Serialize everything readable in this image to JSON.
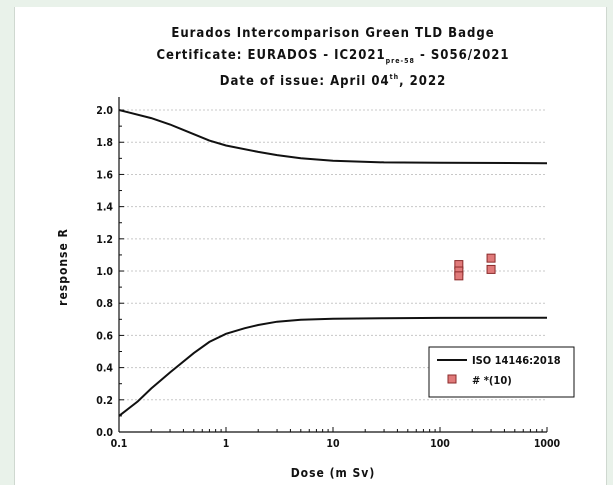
{
  "chart_data": {
    "type": "line",
    "title_lines": [
      "Eurados Intercomparison Green TLD Badge",
      "Certificate: EURADOS - IC2021",
      "Date of issue: April 04"
    ],
    "title_sub": "pre-58",
    "title_tail": " - S056/2021",
    "title_sup": "th",
    "title_date_tail": ", 2022",
    "xlabel": "Dose (m Sv)",
    "ylabel": "response R",
    "xscale": "log",
    "xlim": [
      0.1,
      1000
    ],
    "ylim": [
      0.0,
      2.05
    ],
    "x_ticks": [
      "0.1",
      "1",
      "10",
      "100",
      "1000"
    ],
    "x_tick_values": [
      0.1,
      1,
      10,
      100,
      1000
    ],
    "y_ticks": [
      "0.0",
      "0.2",
      "0.4",
      "0.6",
      "0.8",
      "1.0",
      "1.2",
      "1.4",
      "1.6",
      "1.8",
      "2.0"
    ],
    "y_tick_values": [
      0.0,
      0.2,
      0.4,
      0.6,
      0.8,
      1.0,
      1.2,
      1.4,
      1.6,
      1.8,
      2.0
    ],
    "grid": true,
    "legend_position": "bottom-right",
    "series": [
      {
        "name": "ISO 14146:2018",
        "kind": "line",
        "color": "#111111",
        "x": [
          0.1,
          0.2,
          0.3,
          0.5,
          0.7,
          1,
          2,
          3,
          5,
          10,
          30,
          100,
          1000
        ],
        "y": [
          2.0,
          1.95,
          1.91,
          1.85,
          1.81,
          1.78,
          1.74,
          1.72,
          1.7,
          1.685,
          1.675,
          1.672,
          1.67
        ]
      },
      {
        "name": "",
        "kind": "line",
        "color": "#111111",
        "x": [
          0.1,
          0.15,
          0.2,
          0.3,
          0.5,
          0.7,
          1,
          1.5,
          2,
          3,
          5,
          10,
          30,
          100,
          1000
        ],
        "y": [
          0.1,
          0.19,
          0.27,
          0.37,
          0.49,
          0.56,
          0.61,
          0.645,
          0.665,
          0.685,
          0.697,
          0.703,
          0.707,
          0.709,
          0.71
        ]
      },
      {
        "name": "# *(10)",
        "kind": "marker",
        "color": "#e07a7a",
        "x": [
          150,
          150,
          150,
          300,
          300
        ],
        "y": [
          1.04,
          1.0,
          0.97,
          1.08,
          1.01
        ]
      }
    ]
  }
}
